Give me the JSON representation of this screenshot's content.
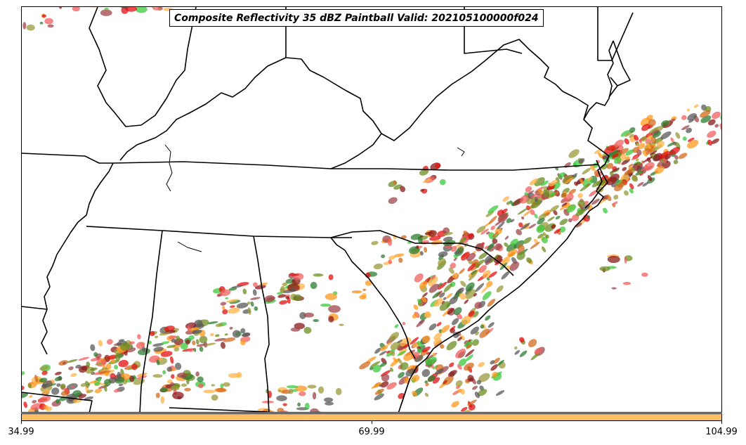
{
  "title": "Composite Reflectivity 35 dBZ Paintball Valid: 202105100000f024",
  "colorbar": {
    "color": "#ffbf66",
    "ticks": [
      "34.99",
      "69.99",
      "104.99"
    ]
  },
  "member_colors": [
    "#e01010",
    "#f06060",
    "#ff9a1e",
    "#ffb347",
    "#8b1a1a",
    "#a0444a",
    "#6b8e23",
    "#9a9a3a",
    "#2e7d32",
    "#3cc83c",
    "#5a5a5a",
    "#d2691e"
  ]
}
